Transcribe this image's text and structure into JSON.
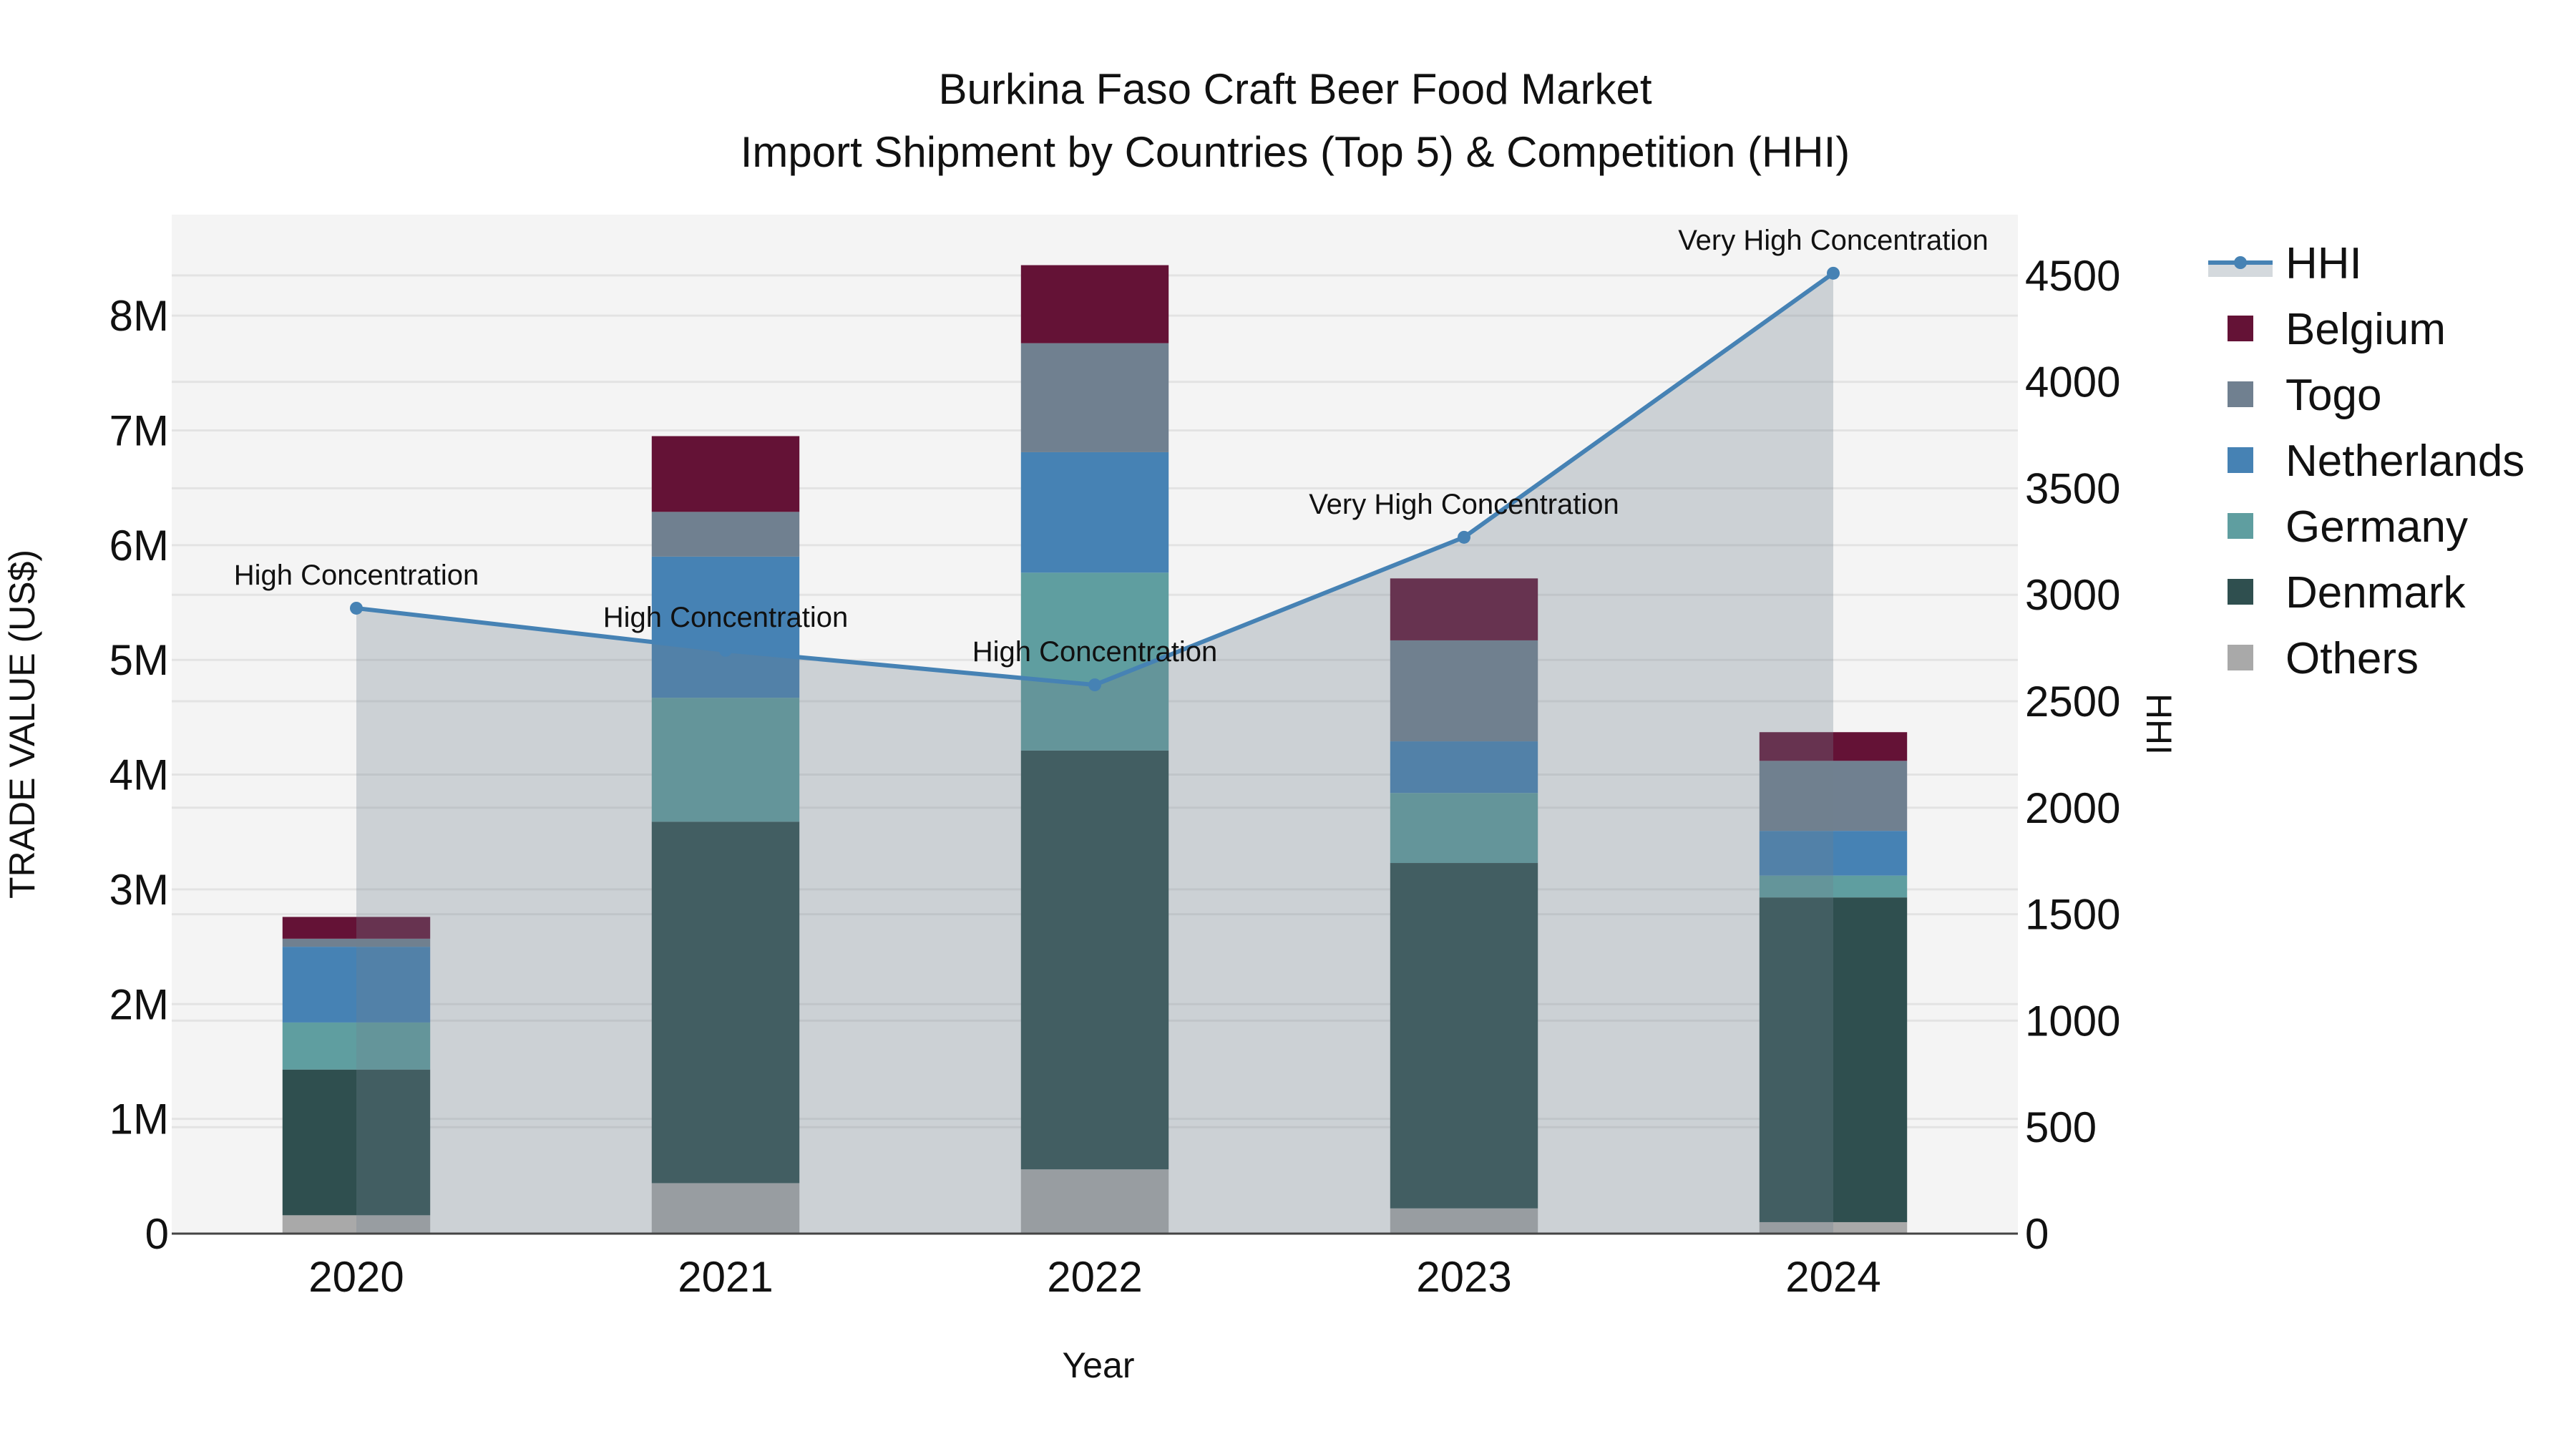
{
  "chart_data": {
    "type": "bar",
    "title": "Burkina Faso Craft Beer Food Market",
    "subtitle": "Import Shipment by Countries (Top 5) & Competition (HHI)",
    "xlabel": "Year",
    "ylabel": "TRADE VALUE (US$)",
    "y2label": "HHI",
    "categories": [
      "2020",
      "2021",
      "2022",
      "2023",
      "2024"
    ],
    "stacked": true,
    "ylim": [
      0,
      8880000
    ],
    "y2lim": [
      0,
      4785
    ],
    "yticks": [
      0,
      1000000,
      2000000,
      3000000,
      4000000,
      5000000,
      6000000,
      7000000,
      8000000
    ],
    "ytick_labels": [
      "0",
      "1M",
      "2M",
      "3M",
      "4M",
      "5M",
      "6M",
      "7M",
      "8M"
    ],
    "y2ticks": [
      0,
      500,
      1000,
      1500,
      2000,
      2500,
      3000,
      3500,
      4000,
      4500
    ],
    "y2tick_labels": [
      "0",
      "500",
      "1000",
      "1500",
      "2000",
      "2500",
      "3000",
      "3500",
      "4000",
      "4500"
    ],
    "grid": true,
    "legend_position": "right",
    "series": [
      {
        "name": "Others",
        "color": "#A9A9A9",
        "values": [
          160000,
          440000,
          560000,
          220000,
          100000
        ]
      },
      {
        "name": "Denmark",
        "color": "#2F4F4F",
        "values": [
          1270000,
          3150000,
          3650000,
          3010000,
          2830000
        ]
      },
      {
        "name": "Germany",
        "color": "#5F9EA0",
        "values": [
          410000,
          1080000,
          1550000,
          610000,
          190000
        ]
      },
      {
        "name": "Netherlands",
        "color": "#4682B4",
        "values": [
          660000,
          1230000,
          1050000,
          450000,
          390000
        ]
      },
      {
        "name": "Togo",
        "color": "#708090",
        "values": [
          70000,
          390000,
          950000,
          880000,
          610000
        ]
      },
      {
        "name": "Belgium",
        "color": "#641236",
        "values": [
          190000,
          660000,
          680000,
          540000,
          250000
        ]
      }
    ],
    "line_series": {
      "name": "HHI",
      "axis": "y2",
      "color": "#4682B4",
      "fill_color": "rgba(112,128,144,0.3)",
      "values": [
        2937,
        2739,
        2577,
        3270,
        4510
      ],
      "annotations": [
        "High Concentration",
        "High Concentration",
        "High Concentration",
        "Very High Concentration",
        "Very High Concentration"
      ]
    }
  },
  "legend": {
    "items": [
      {
        "label": "HHI",
        "type": "line",
        "color": "#4682B4"
      },
      {
        "label": "Belgium",
        "type": "box",
        "color": "#641236"
      },
      {
        "label": "Togo",
        "type": "box",
        "color": "#708090"
      },
      {
        "label": "Netherlands",
        "type": "box",
        "color": "#4682B4"
      },
      {
        "label": "Germany",
        "type": "box",
        "color": "#5F9EA0"
      },
      {
        "label": "Denmark",
        "type": "box",
        "color": "#2F4F4F"
      },
      {
        "label": "Others",
        "type": "box",
        "color": "#A9A9A9"
      }
    ]
  },
  "colors": {
    "plot_bg": "#F4F4F4",
    "grid": "#E3E3E3",
    "axis_line": "#444444"
  }
}
